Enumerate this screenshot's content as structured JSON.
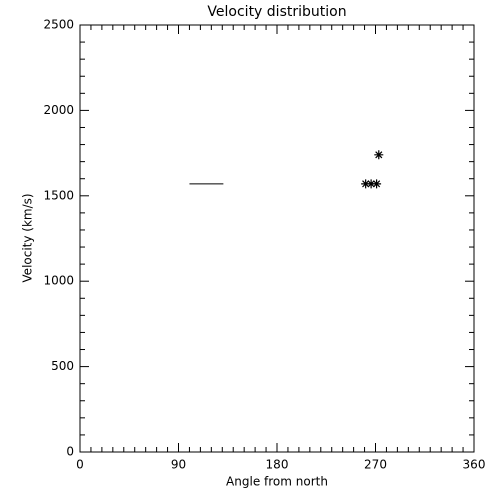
{
  "chart_data": {
    "type": "scatter",
    "title": "Velocity distribution",
    "x_label": "Angle from north",
    "y_label": "Velocity (km/s)",
    "series": [
      {
        "color": "#000000",
        "marker": "asterisk",
        "x": [
          261,
          266,
          271,
          273
        ],
        "values": [
          1570,
          1570,
          1570,
          1740
        ]
      },
      {
        "color": "#000000",
        "marker": "line",
        "x": [
          100,
          131
        ],
        "values": [
          1570,
          1570
        ]
      }
    ],
    "xlim": [
      0,
      360
    ],
    "xticks": [
      0,
      90,
      180,
      270,
      360
    ],
    "ylim": [
      0,
      2500
    ],
    "yticks": [
      0,
      500,
      1000,
      1500,
      2000,
      2500
    ],
    "xminorticks": [
      10,
      20,
      30,
      40,
      50,
      60,
      70,
      80,
      100,
      110,
      120,
      130,
      140,
      150,
      160,
      170,
      190,
      200,
      210,
      220,
      230,
      240,
      250,
      260,
      280,
      290,
      300,
      310,
      320,
      330,
      340,
      350
    ],
    "yminorticks": [
      100,
      200,
      300,
      400,
      600,
      700,
      800,
      900,
      1100,
      1200,
      1300,
      1400,
      1600,
      1700,
      1800,
      1900,
      2100,
      2200,
      2300,
      2400
    ],
    "grid": false
  }
}
